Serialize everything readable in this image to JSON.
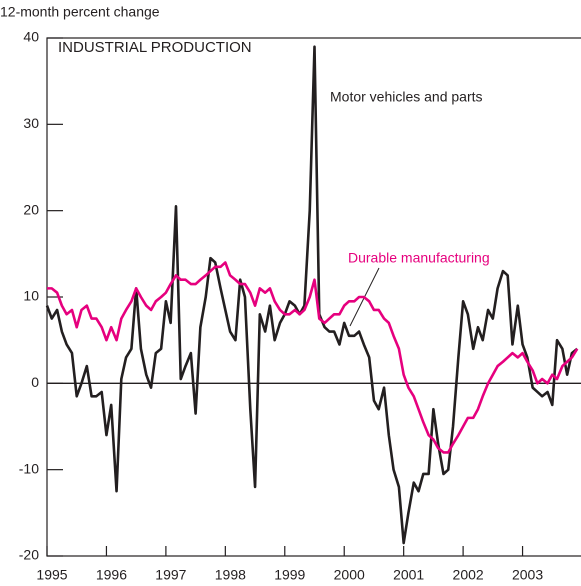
{
  "chart_data": {
    "type": "line",
    "title": "INDUSTRIAL PRODUCTION",
    "y_label": "12-month percent change",
    "xlim": [
      1995,
      2004
    ],
    "xticks": [
      1995,
      1996,
      1997,
      1998,
      1999,
      2000,
      2001,
      2002,
      2003
    ],
    "ylim": [
      -20,
      40
    ],
    "yticks": [
      -20,
      -10,
      0,
      10,
      20,
      30,
      40
    ],
    "grid": false,
    "x": [
      1995,
      1995.08,
      1995.17,
      1995.25,
      1995.33,
      1995.42,
      1995.5,
      1995.58,
      1995.67,
      1995.75,
      1995.83,
      1995.92,
      1996,
      1996.08,
      1996.17,
      1996.25,
      1996.33,
      1996.42,
      1996.5,
      1996.58,
      1996.67,
      1996.75,
      1996.83,
      1996.92,
      1997,
      1997.08,
      1997.17,
      1997.25,
      1997.33,
      1997.42,
      1997.5,
      1997.58,
      1997.67,
      1997.75,
      1997.83,
      1997.92,
      1998,
      1998.08,
      1998.17,
      1998.25,
      1998.33,
      1998.42,
      1998.5,
      1998.58,
      1998.67,
      1998.75,
      1998.83,
      1998.92,
      1999,
      1999.08,
      1999.17,
      1999.25,
      1999.33,
      1999.42,
      1999.5,
      1999.58,
      1999.67,
      1999.75,
      1999.83,
      1999.92,
      2000,
      2000.08,
      2000.17,
      2000.25,
      2000.33,
      2000.42,
      2000.5,
      2000.58,
      2000.67,
      2000.75,
      2000.83,
      2000.92,
      2001,
      2001.08,
      2001.17,
      2001.25,
      2001.33,
      2001.42,
      2001.5,
      2001.58,
      2001.67,
      2001.75,
      2001.83,
      2001.92,
      2002,
      2002.08,
      2002.17,
      2002.25,
      2002.33,
      2002.42,
      2002.5,
      2002.58,
      2002.67,
      2002.75,
      2002.83,
      2002.92,
      2003,
      2003.08,
      2003.17,
      2003.25,
      2003.33,
      2003.42,
      2003.5,
      2003.58,
      2003.67,
      2003.75,
      2003.83,
      2003.92
    ],
    "series": [
      {
        "name": "Motor vehicles and parts",
        "color": "#231f20",
        "values": [
          9,
          7.5,
          8.5,
          6,
          4.5,
          3.5,
          -1.5,
          0,
          2,
          -1.5,
          -1.5,
          -1,
          -6,
          -2.5,
          -12.5,
          0.5,
          3,
          4,
          11,
          4,
          1,
          -0.5,
          3.5,
          4,
          9.5,
          7,
          20.5,
          0.5,
          2,
          3.5,
          -3.5,
          6.5,
          10,
          14.5,
          14,
          11,
          8.5,
          6,
          5,
          12,
          10,
          -3,
          -12,
          8,
          6,
          9,
          5,
          7,
          8,
          9.5,
          9,
          8,
          9,
          20,
          39,
          8,
          6.5,
          6,
          6,
          4.5,
          7,
          5.5,
          5.5,
          6,
          4.5,
          3,
          -2,
          -3,
          -0.5,
          -6,
          -10,
          -12,
          -18.5,
          -15,
          -11.5,
          -12.5,
          -10.5,
          -10.5,
          -3,
          -7,
          -10.5,
          -10,
          -5,
          3,
          9.5,
          8,
          4,
          6.5,
          5,
          8.5,
          7.5,
          11,
          13,
          12.5,
          4.5,
          9,
          4.5,
          3,
          -0.5,
          -1,
          -1.5,
          -1,
          -2.5,
          5,
          4,
          1,
          3.5,
          4
        ]
      },
      {
        "name": "Durable manufacturing",
        "color": "#e6007e",
        "values": [
          11,
          11,
          10.5,
          9,
          8,
          8.5,
          6.5,
          8.5,
          9,
          7.5,
          7.5,
          6.5,
          5,
          6.5,
          5,
          7.5,
          8.5,
          9.5,
          11,
          10,
          9,
          8.5,
          9.5,
          10,
          10.5,
          11.5,
          12.5,
          12,
          12,
          11.5,
          11.5,
          12,
          12.5,
          13,
          13.5,
          13.5,
          14,
          12.5,
          12,
          11.5,
          11.5,
          10.5,
          9,
          11,
          10.5,
          11,
          9.5,
          8.5,
          8,
          8,
          8.5,
          8,
          8.5,
          10,
          12,
          7.5,
          7,
          7.5,
          8,
          8,
          9,
          9.5,
          9.5,
          10,
          10,
          9.5,
          8.5,
          8.5,
          7.5,
          7,
          5.5,
          4,
          1,
          -0.5,
          -1.5,
          -3,
          -4.5,
          -6,
          -6.5,
          -7.5,
          -8,
          -8,
          -7,
          -6,
          -5,
          -4,
          -4,
          -3,
          -1.5,
          0,
          1,
          2,
          2.5,
          3,
          3.5,
          3,
          3.5,
          2.5,
          1.5,
          0,
          0.5,
          0,
          1,
          0.5,
          2,
          2.5,
          3,
          4
        ]
      }
    ]
  }
}
